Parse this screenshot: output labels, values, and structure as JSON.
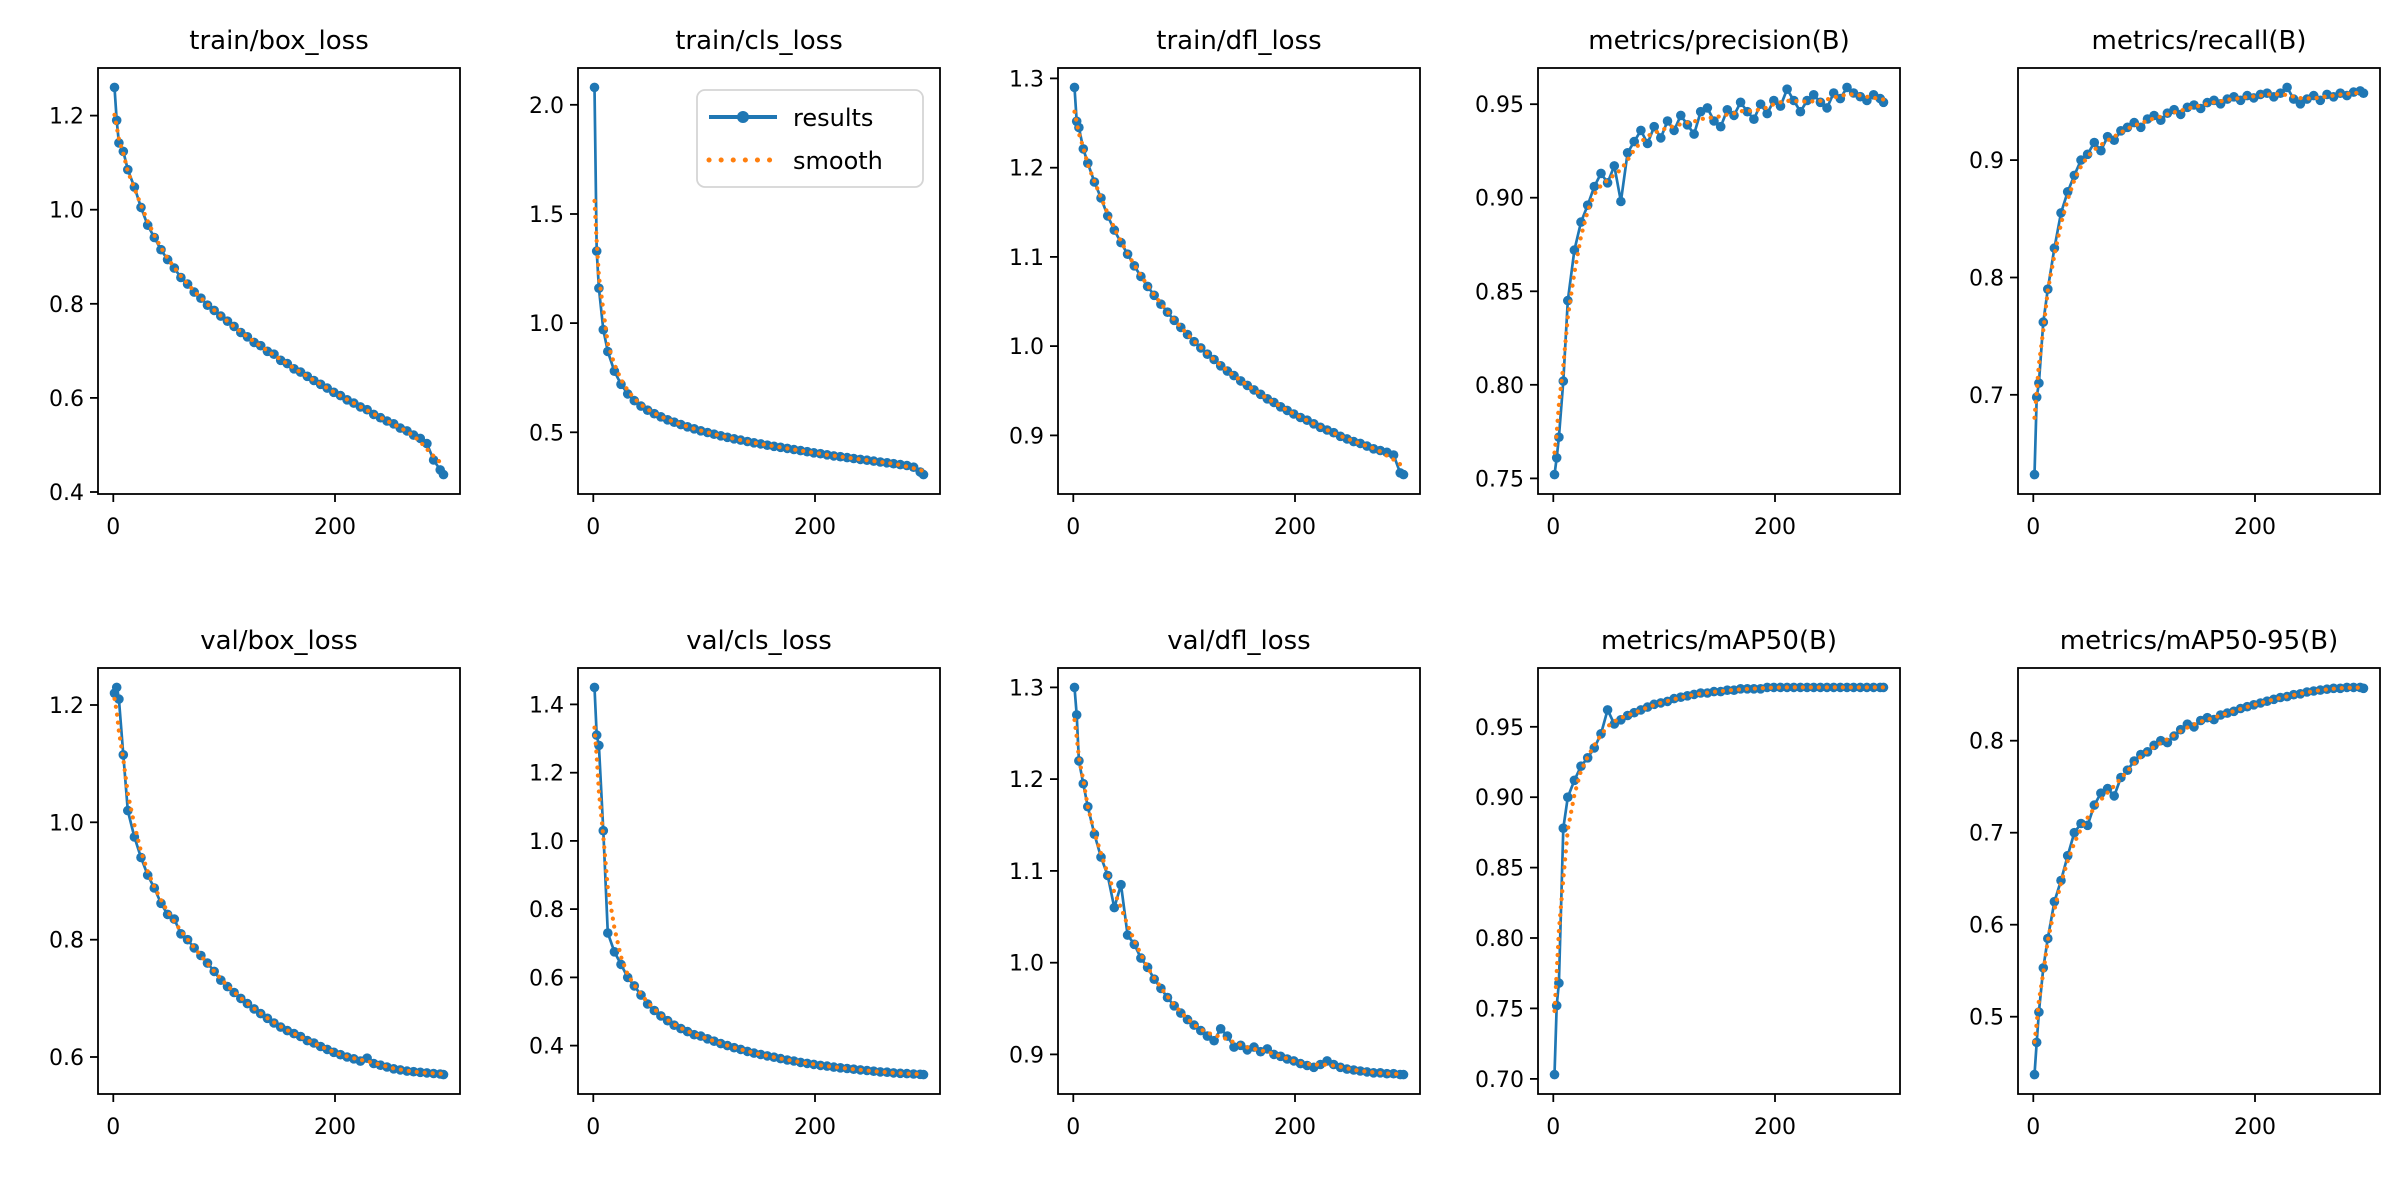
{
  "figure": {
    "background": "#ffffff"
  },
  "colors": {
    "results": "#1f77b4",
    "smooth": "#ff7f0e",
    "spine": "#000000",
    "tick_text": "#000000",
    "title_text": "#000000",
    "legend_border": "#d5d5d5",
    "legend_fill": "#ffffff"
  },
  "legend": {
    "entries": [
      {
        "label": "results",
        "swatch": "blue-line-with-marker"
      },
      {
        "label": "smooth",
        "swatch": "orange-dotted-line"
      }
    ]
  },
  "chart_data": {
    "type": "line",
    "layout": {
      "rows": 2,
      "cols": 5,
      "grid": false,
      "legend_location": "upper right of train/cls_loss panel",
      "x_margin": 0.05,
      "y_margin": 0.05
    },
    "series_names": [
      "results",
      "smooth"
    ],
    "xticks": [
      0,
      200
    ],
    "xtick_labels": [
      "0",
      "200"
    ],
    "x": [
      1,
      3,
      5,
      9,
      13,
      19,
      25,
      31,
      37,
      43,
      49,
      55,
      61,
      67,
      73,
      79,
      85,
      91,
      97,
      103,
      109,
      115,
      121,
      127,
      133,
      139,
      145,
      151,
      157,
      163,
      169,
      175,
      181,
      187,
      193,
      199,
      205,
      211,
      217,
      223,
      229,
      235,
      241,
      247,
      253,
      259,
      265,
      271,
      277,
      283,
      289,
      295,
      298
    ],
    "charts": [
      {
        "title": "train/box_loss",
        "show_legend": false,
        "yticks": [
          0.4,
          0.6,
          0.8,
          1.0,
          1.2
        ],
        "ytick_labels": [
          "0.4",
          "0.6",
          "0.8",
          "1.0",
          "1.2"
        ],
        "y": [
          1.26,
          1.19,
          1.142,
          1.124,
          1.085,
          1.048,
          1.005,
          0.967,
          0.941,
          0.915,
          0.894,
          0.876,
          0.856,
          0.842,
          0.825,
          0.812,
          0.797,
          0.786,
          0.774,
          0.763,
          0.752,
          0.739,
          0.73,
          0.718,
          0.711,
          0.699,
          0.693,
          0.68,
          0.673,
          0.662,
          0.655,
          0.646,
          0.637,
          0.629,
          0.621,
          0.612,
          0.605,
          0.596,
          0.589,
          0.581,
          0.575,
          0.565,
          0.558,
          0.551,
          0.545,
          0.536,
          0.53,
          0.521,
          0.514,
          0.503,
          0.468,
          0.447,
          0.437
        ]
      },
      {
        "title": "train/cls_loss",
        "show_legend": true,
        "yticks": [
          0.5,
          1.0,
          1.5,
          2.0
        ],
        "ytick_labels": [
          "0.5",
          "1.0",
          "1.5",
          "2.0"
        ],
        "y": [
          2.08,
          1.33,
          1.16,
          0.97,
          0.87,
          0.78,
          0.72,
          0.676,
          0.645,
          0.62,
          0.601,
          0.585,
          0.571,
          0.557,
          0.546,
          0.535,
          0.525,
          0.516,
          0.507,
          0.499,
          0.491,
          0.484,
          0.477,
          0.47,
          0.464,
          0.458,
          0.452,
          0.447,
          0.441,
          0.436,
          0.431,
          0.426,
          0.421,
          0.416,
          0.411,
          0.406,
          0.402,
          0.397,
          0.392,
          0.388,
          0.384,
          0.38,
          0.376,
          0.372,
          0.368,
          0.364,
          0.36,
          0.356,
          0.352,
          0.348,
          0.34,
          0.318,
          0.306
        ]
      },
      {
        "title": "train/dfl_loss",
        "show_legend": false,
        "yticks": [
          0.9,
          1.0,
          1.1,
          1.2,
          1.3
        ],
        "ytick_labels": [
          "0.9",
          "1.0",
          "1.1",
          "1.2",
          "1.3"
        ],
        "y": [
          1.29,
          1.252,
          1.245,
          1.221,
          1.205,
          1.184,
          1.166,
          1.146,
          1.13,
          1.116,
          1.103,
          1.09,
          1.078,
          1.067,
          1.057,
          1.047,
          1.038,
          1.029,
          1.021,
          1.013,
          1.005,
          0.998,
          0.991,
          0.985,
          0.978,
          0.972,
          0.967,
          0.961,
          0.956,
          0.951,
          0.946,
          0.941,
          0.937,
          0.932,
          0.928,
          0.924,
          0.92,
          0.917,
          0.913,
          0.909,
          0.906,
          0.903,
          0.899,
          0.896,
          0.893,
          0.891,
          0.888,
          0.885,
          0.883,
          0.881,
          0.878,
          0.858,
          0.856
        ]
      },
      {
        "title": "metrics/precision(B)",
        "show_legend": false,
        "yticks": [
          0.75,
          0.8,
          0.85,
          0.9,
          0.95
        ],
        "ytick_labels": [
          "0.75",
          "0.80",
          "0.85",
          "0.90",
          "0.95"
        ],
        "y": [
          0.752,
          0.761,
          0.772,
          0.802,
          0.845,
          0.872,
          0.887,
          0.896,
          0.906,
          0.913,
          0.908,
          0.917,
          0.898,
          0.924,
          0.93,
          0.936,
          0.929,
          0.938,
          0.932,
          0.941,
          0.936,
          0.944,
          0.939,
          0.934,
          0.946,
          0.948,
          0.941,
          0.938,
          0.947,
          0.944,
          0.951,
          0.946,
          0.942,
          0.95,
          0.945,
          0.952,
          0.949,
          0.958,
          0.952,
          0.946,
          0.952,
          0.955,
          0.951,
          0.948,
          0.956,
          0.953,
          0.959,
          0.956,
          0.954,
          0.952,
          0.955,
          0.953,
          0.951
        ]
      },
      {
        "title": "metrics/recall(B)",
        "show_legend": false,
        "yticks": [
          0.7,
          0.8,
          0.9
        ],
        "ytick_labels": [
          "0.7",
          "0.8",
          "0.9"
        ],
        "y": [
          0.632,
          0.698,
          0.71,
          0.762,
          0.79,
          0.825,
          0.855,
          0.873,
          0.887,
          0.9,
          0.905,
          0.915,
          0.908,
          0.92,
          0.917,
          0.925,
          0.928,
          0.932,
          0.928,
          0.935,
          0.938,
          0.934,
          0.94,
          0.943,
          0.939,
          0.945,
          0.947,
          0.944,
          0.949,
          0.951,
          0.948,
          0.952,
          0.954,
          0.951,
          0.955,
          0.953,
          0.956,
          0.957,
          0.954,
          0.957,
          0.962,
          0.952,
          0.948,
          0.952,
          0.955,
          0.951,
          0.956,
          0.954,
          0.957,
          0.955,
          0.958,
          0.959,
          0.957
        ]
      },
      {
        "title": "val/box_loss",
        "show_legend": false,
        "yticks": [
          0.6,
          0.8,
          1.0,
          1.2
        ],
        "ytick_labels": [
          "0.6",
          "0.8",
          "1.0",
          "1.2"
        ],
        "y": [
          1.22,
          1.23,
          1.21,
          1.115,
          1.02,
          0.975,
          0.94,
          0.91,
          0.888,
          0.862,
          0.843,
          0.835,
          0.81,
          0.8,
          0.786,
          0.773,
          0.76,
          0.746,
          0.731,
          0.72,
          0.71,
          0.7,
          0.691,
          0.682,
          0.674,
          0.666,
          0.658,
          0.651,
          0.645,
          0.64,
          0.635,
          0.628,
          0.624,
          0.618,
          0.613,
          0.608,
          0.604,
          0.6,
          0.597,
          0.593,
          0.598,
          0.589,
          0.586,
          0.583,
          0.58,
          0.578,
          0.576,
          0.575,
          0.574,
          0.573,
          0.572,
          0.571,
          0.57
        ]
      },
      {
        "title": "val/cls_loss",
        "show_legend": false,
        "yticks": [
          0.4,
          0.6,
          0.8,
          1.0,
          1.2,
          1.4
        ],
        "ytick_labels": [
          "0.4",
          "0.6",
          "0.8",
          "1.0",
          "1.2",
          "1.4"
        ],
        "y": [
          1.45,
          1.31,
          1.28,
          1.03,
          0.73,
          0.675,
          0.638,
          0.6,
          0.575,
          0.548,
          0.522,
          0.503,
          0.487,
          0.473,
          0.46,
          0.45,
          0.441,
          0.432,
          0.428,
          0.42,
          0.413,
          0.406,
          0.4,
          0.394,
          0.389,
          0.383,
          0.378,
          0.374,
          0.37,
          0.366,
          0.362,
          0.358,
          0.355,
          0.351,
          0.348,
          0.345,
          0.342,
          0.34,
          0.337,
          0.335,
          0.333,
          0.331,
          0.329,
          0.327,
          0.325,
          0.323,
          0.322,
          0.32,
          0.319,
          0.318,
          0.317,
          0.316,
          0.315
        ]
      },
      {
        "title": "val/dfl_loss",
        "show_legend": false,
        "yticks": [
          0.9,
          1.0,
          1.1,
          1.2,
          1.3
        ],
        "ytick_labels": [
          "0.9",
          "1.0",
          "1.1",
          "1.2",
          "1.3"
        ],
        "y": [
          1.3,
          1.27,
          1.22,
          1.195,
          1.17,
          1.14,
          1.115,
          1.095,
          1.06,
          1.085,
          1.03,
          1.02,
          1.005,
          0.995,
          0.982,
          0.972,
          0.962,
          0.953,
          0.945,
          0.938,
          0.932,
          0.926,
          0.92,
          0.915,
          0.928,
          0.92,
          0.908,
          0.91,
          0.905,
          0.908,
          0.903,
          0.906,
          0.9,
          0.898,
          0.895,
          0.893,
          0.89,
          0.888,
          0.886,
          0.889,
          0.893,
          0.889,
          0.886,
          0.884,
          0.883,
          0.882,
          0.881,
          0.88,
          0.88,
          0.879,
          0.879,
          0.878,
          0.878
        ]
      },
      {
        "title": "metrics/mAP50(B)",
        "show_legend": false,
        "yticks": [
          0.7,
          0.75,
          0.8,
          0.85,
          0.9,
          0.95
        ],
        "ytick_labels": [
          "0.70",
          "0.75",
          "0.80",
          "0.85",
          "0.90",
          "0.95"
        ],
        "y": [
          0.703,
          0.752,
          0.768,
          0.878,
          0.9,
          0.912,
          0.922,
          0.928,
          0.935,
          0.945,
          0.962,
          0.952,
          0.955,
          0.958,
          0.96,
          0.962,
          0.964,
          0.966,
          0.967,
          0.968,
          0.97,
          0.971,
          0.972,
          0.973,
          0.974,
          0.974,
          0.975,
          0.975,
          0.976,
          0.976,
          0.977,
          0.977,
          0.977,
          0.977,
          0.978,
          0.978,
          0.978,
          0.978,
          0.978,
          0.978,
          0.978,
          0.978,
          0.978,
          0.978,
          0.978,
          0.978,
          0.978,
          0.978,
          0.978,
          0.978,
          0.978,
          0.978,
          0.978
        ]
      },
      {
        "title": "metrics/mAP50-95(B)",
        "show_legend": false,
        "yticks": [
          0.5,
          0.6,
          0.7,
          0.8
        ],
        "ytick_labels": [
          "0.5",
          "0.6",
          "0.7",
          "0.8"
        ],
        "y": [
          0.437,
          0.472,
          0.505,
          0.553,
          0.585,
          0.625,
          0.648,
          0.675,
          0.7,
          0.71,
          0.708,
          0.73,
          0.743,
          0.748,
          0.74,
          0.76,
          0.768,
          0.778,
          0.785,
          0.788,
          0.795,
          0.8,
          0.798,
          0.805,
          0.812,
          0.818,
          0.815,
          0.822,
          0.825,
          0.823,
          0.828,
          0.83,
          0.832,
          0.835,
          0.837,
          0.839,
          0.841,
          0.843,
          0.845,
          0.847,
          0.848,
          0.85,
          0.851,
          0.853,
          0.854,
          0.855,
          0.856,
          0.857,
          0.857,
          0.858,
          0.858,
          0.858,
          0.857
        ]
      }
    ]
  }
}
